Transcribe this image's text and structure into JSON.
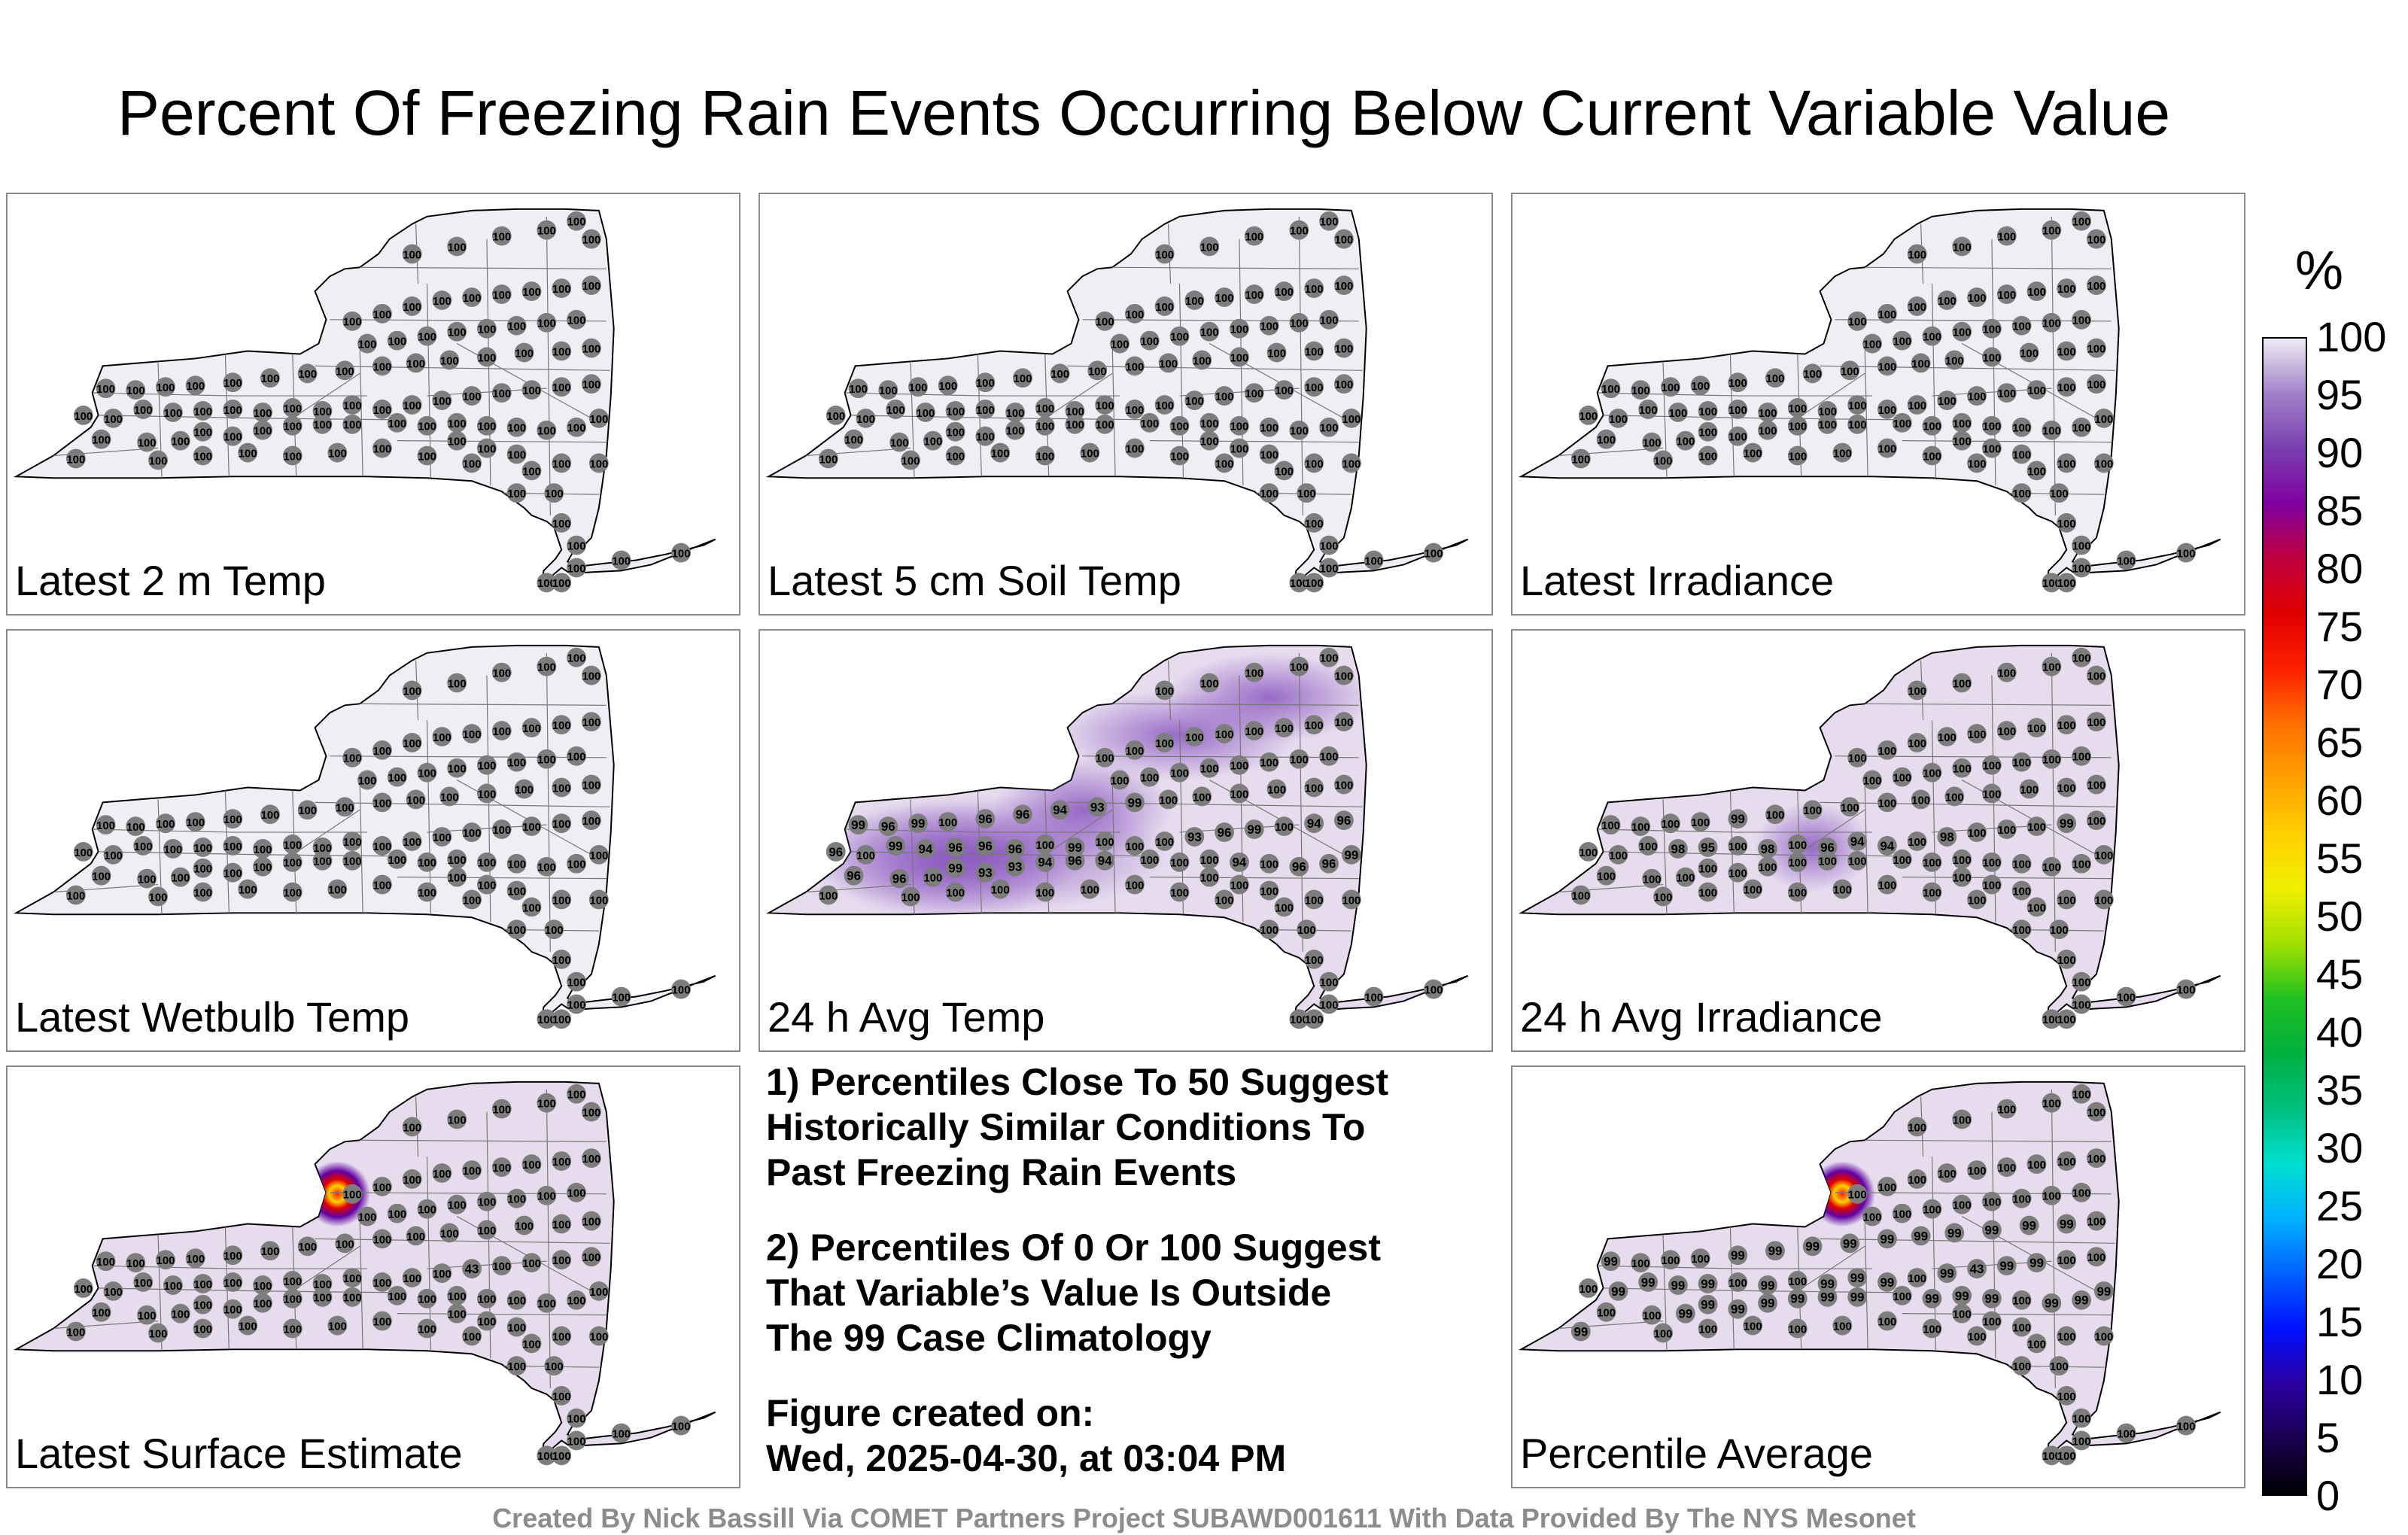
{
  "title": "Percent Of Freezing Rain Events Occurring Below Current Variable Value",
  "panels": [
    {
      "label": "Latest 2 m Temp",
      "default_value": "100",
      "station_values": {}
    },
    {
      "label": "Latest 5 cm Soil Temp",
      "default_value": "100",
      "station_values": {}
    },
    {
      "label": "Latest Irradiance",
      "default_value": "100",
      "station_values": {}
    },
    {
      "label": "Latest Wetbulb Temp",
      "default_value": "100",
      "station_values": {}
    },
    {
      "label": "24 h Avg Temp",
      "default_value": "100",
      "station_values": {
        "1": "96",
        "2": "96",
        "4": "99",
        "5": "93",
        "6": "93",
        "7": "94",
        "8": "96",
        "9": "94",
        "13": "94",
        "15": "96",
        "16": "96",
        "17": "99",
        "18": "96",
        "20": "99",
        "21": "94",
        "22": "96",
        "23": "96",
        "24": "96",
        "26": "99",
        "30": "93",
        "31": "96",
        "32": "99",
        "34": "94",
        "35": "96",
        "36": "99",
        "37": "96",
        "38": "99",
        "40": "96",
        "41": "96",
        "42": "94",
        "43": "93",
        "44": "99"
      }
    },
    {
      "label": "24 h Avg Irradiance",
      "default_value": "100",
      "station_values": {
        "21": "98",
        "22": "95",
        "24": "98",
        "26": "96",
        "27": "94",
        "28": "94",
        "30": "98",
        "34": "99",
        "40": "99"
      }
    },
    {
      "label": "Latest Surface Estimate",
      "default_value": "100",
      "station_values": {
        "31": "43"
      }
    },
    {
      "label": "Percentile Average",
      "default_value": "100",
      "station_values": {
        "0": "99",
        "3": "99",
        "4": "99",
        "5": "99",
        "6": "99",
        "7": "99",
        "8": "99",
        "9": "99",
        "11": "99",
        "12": "99",
        "13": "99",
        "15": "99",
        "16": "99",
        "17": "99",
        "19": "99",
        "20": "99",
        "21": "99",
        "22": "99",
        "24": "99",
        "26": "99",
        "27": "99",
        "28": "99",
        "30": "99",
        "31": "43",
        "32": "99",
        "33": "99",
        "36": "99",
        "40": "99",
        "41": "99",
        "42": "99",
        "43": "99",
        "44": "99",
        "45": "99",
        "46": "99",
        "47": "99",
        "48": "99",
        "49": "99"
      }
    }
  ],
  "notes": {
    "note1_line1": "1) Percentiles Close To 50 Suggest",
    "note1_line2": "Historically Similar Conditions To",
    "note1_line3": "Past Freezing Rain Events",
    "note2_line1": "2) Percentiles Of 0 Or 100 Suggest",
    "note2_line2": "That Variable’s Value Is Outside",
    "note2_line3": "The 99 Case Climatology",
    "created_label": "Figure created on:",
    "created_value": "Wed, 2025-04-30, at 03:04 PM"
  },
  "colorbar": {
    "unit": "%",
    "min": 0,
    "max": 100,
    "ticks": [
      "0",
      "5",
      "10",
      "15",
      "20",
      "25",
      "30",
      "35",
      "40",
      "45",
      "50",
      "55",
      "60",
      "65",
      "70",
      "75",
      "80",
      "85",
      "90",
      "95",
      "100"
    ],
    "colors": [
      "#000000",
      "#1a0050",
      "#2b00a0",
      "#0010ff",
      "#0060ff",
      "#00b0ff",
      "#00e0d0",
      "#00c080",
      "#00b040",
      "#20c020",
      "#a0e000",
      "#f0f000",
      "#ffd000",
      "#ffa000",
      "#ff7000",
      "#ff2000",
      "#e00000",
      "#c00040",
      "#8000a0",
      "#7a3fb0",
      "#a080c8",
      "#f0ecf6"
    ]
  },
  "footer": "Created By Nick Bassill Via COMET Partners Project SUBAWD001611 With Data Provided By The NYS Mesonet"
}
